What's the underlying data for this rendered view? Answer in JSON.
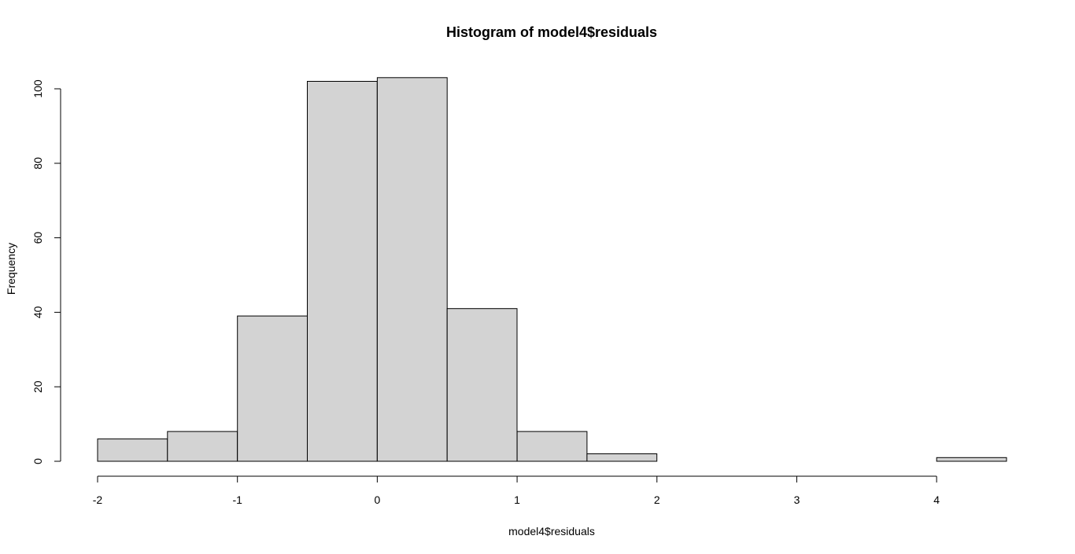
{
  "chart_data": {
    "type": "bar",
    "title": "Histogram of model4$residuals",
    "xlabel": "model4$residuals",
    "ylabel": "Frequency",
    "bin_edges": [
      -2,
      -1.5,
      -1,
      -0.5,
      0,
      0.5,
      1,
      1.5,
      2,
      2.5,
      3,
      3.5,
      4,
      4.5
    ],
    "values": [
      6,
      8,
      39,
      102,
      103,
      41,
      8,
      2,
      0,
      0,
      0,
      0,
      1
    ],
    "xlim": [
      -2,
      4.5
    ],
    "ylim": [
      0,
      103
    ],
    "x_ticks": [
      -2,
      -1,
      0,
      1,
      2,
      3,
      4
    ],
    "x_tick_labels": [
      "-2",
      "-1",
      "0",
      "1",
      "2",
      "3",
      "4"
    ],
    "y_ticks": [
      0,
      20,
      40,
      60,
      80,
      100
    ],
    "y_tick_labels": [
      "0",
      "20",
      "40",
      "60",
      "80",
      "100"
    ],
    "bar_color": "#d3d3d3",
    "grid": false,
    "legend": "none"
  }
}
